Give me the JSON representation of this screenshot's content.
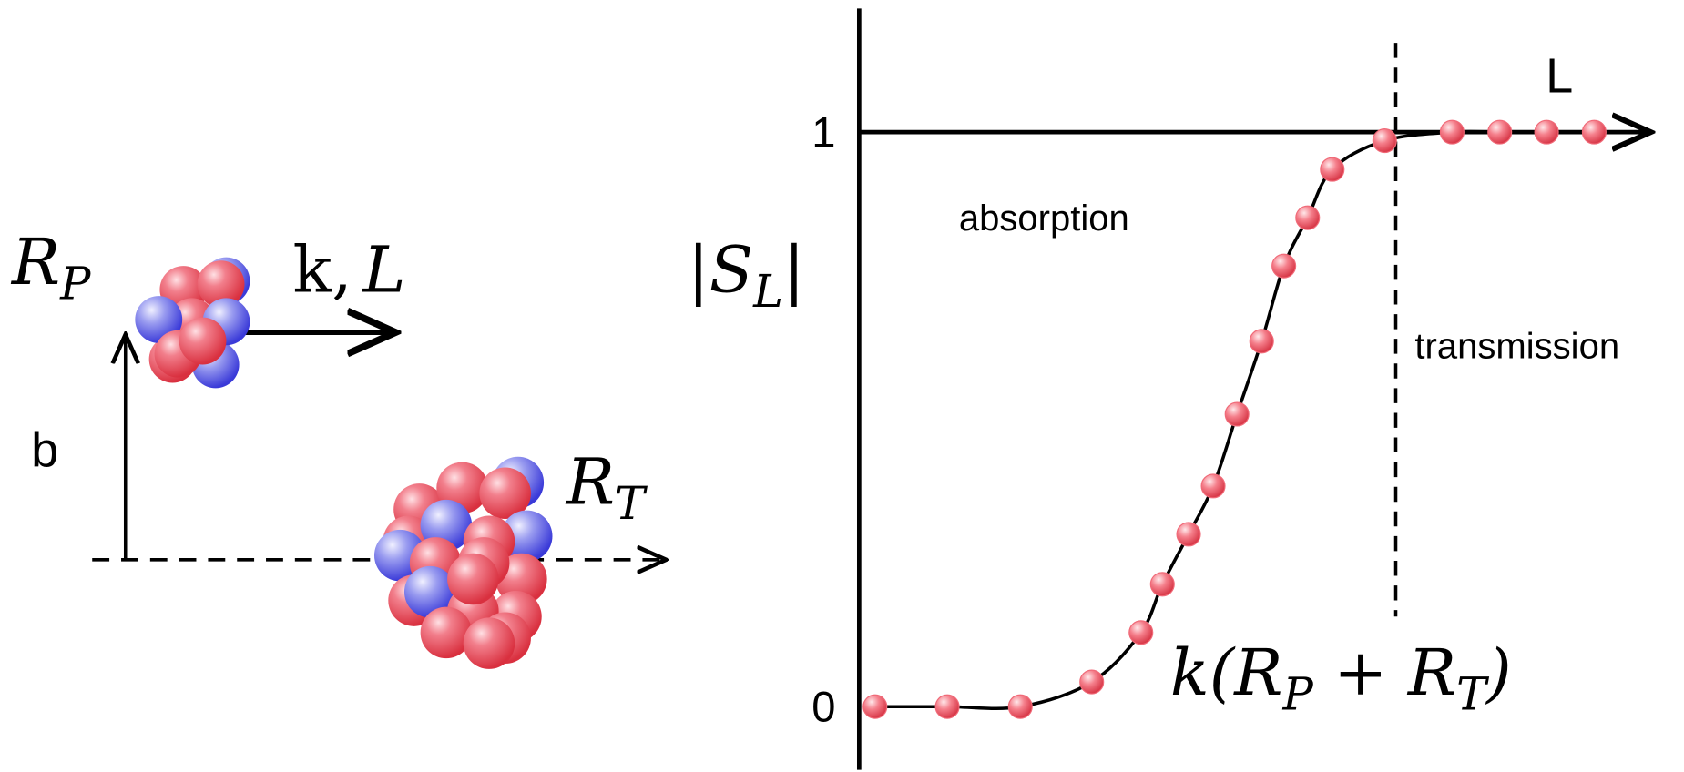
{
  "labels": {
    "projectile": {
      "base": "R",
      "sub": "P"
    },
    "momentum": [
      "k,",
      "L"
    ],
    "impact": "b",
    "target": {
      "base": "R",
      "sub": "T"
    }
  },
  "chart_data": {
    "type": "scatter",
    "x_label": "L",
    "y_label": [
      "|S",
      "L",
      "|"
    ],
    "x": [
      0.02,
      0.111,
      0.203,
      0.293,
      0.355,
      0.382,
      0.415,
      0.446,
      0.476,
      0.507,
      0.535,
      0.565,
      0.596,
      0.662,
      0.747,
      0.807,
      0.866,
      0.926
    ],
    "values": [
      0,
      0,
      0,
      0.043,
      0.129,
      0.213,
      0.3,
      0.384,
      0.509,
      0.636,
      0.767,
      0.851,
      0.935,
      0.985,
      1,
      1,
      1,
      1
    ],
    "color": "#f06a78",
    "xlim": [
      0,
      1
    ],
    "ylim": [
      -0.11,
      1.215
    ],
    "yticks": [
      0,
      1
    ],
    "divider_x": 0.676,
    "regions": [
      "absorption",
      "transmission"
    ],
    "annotation": [
      "k(R",
      "P",
      " + R",
      "T",
      ")"
    ]
  }
}
